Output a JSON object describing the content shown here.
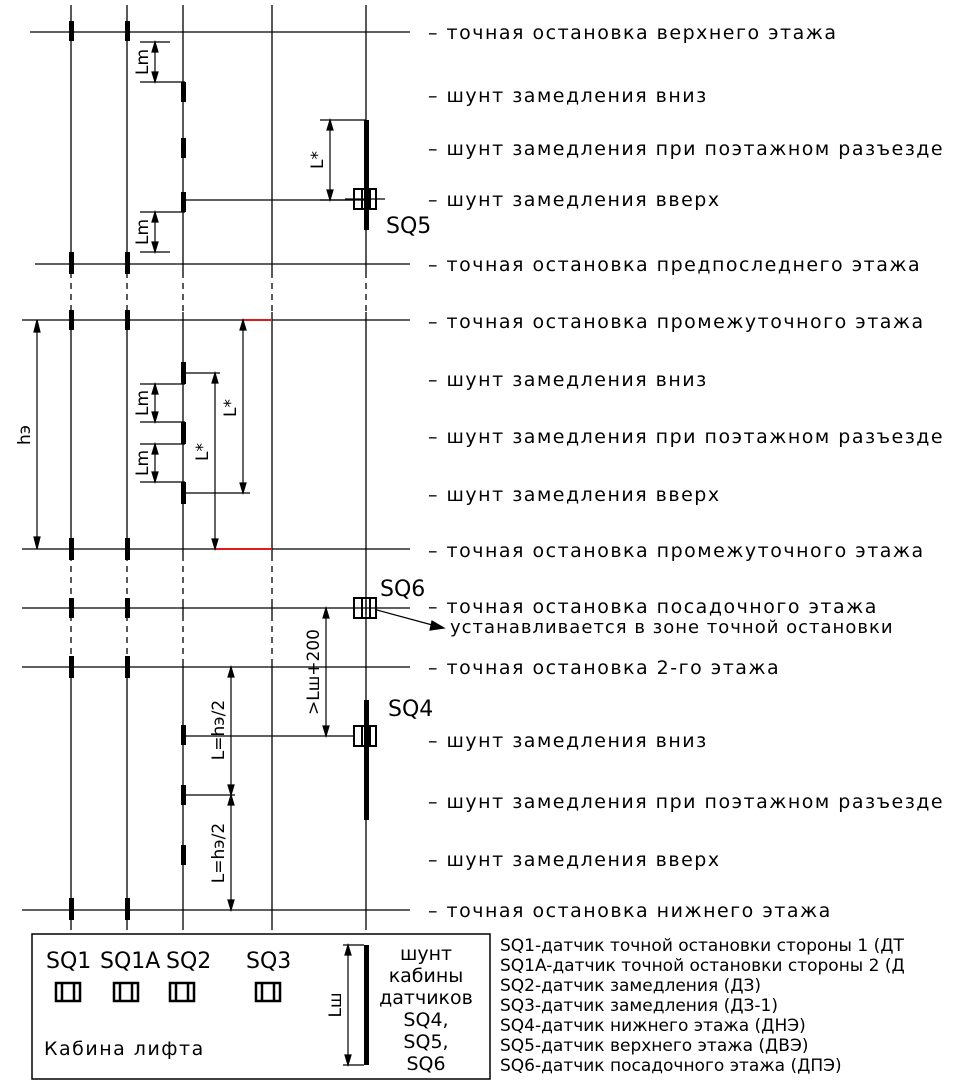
{
  "floor_labels": {
    "top_stop": "– точная остановка верхнего этажа",
    "top_down": "– шунт замедления вниз",
    "top_mid": "– шунт замедления при поэтажном разъезде",
    "top_up": "– шунт замедления вверх",
    "pre_top_stop": "– точная остановка предпоследнего этажа",
    "inter_stop_1": "– точная остановка промежуточного этажа",
    "inter_down": "– шунт замедления вниз",
    "inter_mid": "– шунт замедления при поэтажном разъезде",
    "inter_up": "– шунт замедления вверх",
    "inter_stop_2": "– точная остановка промежуточного этажа",
    "landing_stop": "– точная остановка посадочного этажа",
    "landing_note": "устанавливается в зоне точной остановки",
    "second_stop": "– точная остановка 2-го этажа",
    "bottom_down": "– шунт замедления вниз",
    "bottom_mid": "– шунт замедления при поэтажном разъезде",
    "bottom_up": "– шунт замедления вверх",
    "bottom_stop": "– точная остановка нижнего этажа"
  },
  "sensor_tags": {
    "sq5": "SQ5",
    "sq6": "SQ6",
    "sq4": "SQ4"
  },
  "dimensions": {
    "lm": "Lm",
    "lstar": "L*",
    "he": "hэ",
    "half": "L=hэ/2",
    "lsh200": ">Lш+200"
  },
  "legend": {
    "sensors": [
      "SQ1",
      "SQ1A",
      "SQ2",
      "SQ3"
    ],
    "cabin": "Кабина лифта",
    "shunt_lines": [
      "шунт",
      "кабины",
      "датчиков",
      "SQ4,",
      "SQ5,",
      "SQ6"
    ],
    "lsh": "Lш"
  },
  "notes": [
    "SQ1-датчик точной остановки стороны 1 (ДТ",
    "SQ1A-датчик точной остановки стороны 2 (Д",
    "SQ2-датчик замедления (ДЗ)",
    "SQ3-датчик замедления (ДЗ-1)",
    "SQ4-датчик нижнего этажа (ДНЭ)",
    "SQ5-датчик верхнего этажа (ДВЭ)",
    "SQ6-датчик посадочного этажа (ДПЭ)"
  ],
  "colors": {
    "line": "#000000",
    "highlight": "#e01b1b"
  }
}
